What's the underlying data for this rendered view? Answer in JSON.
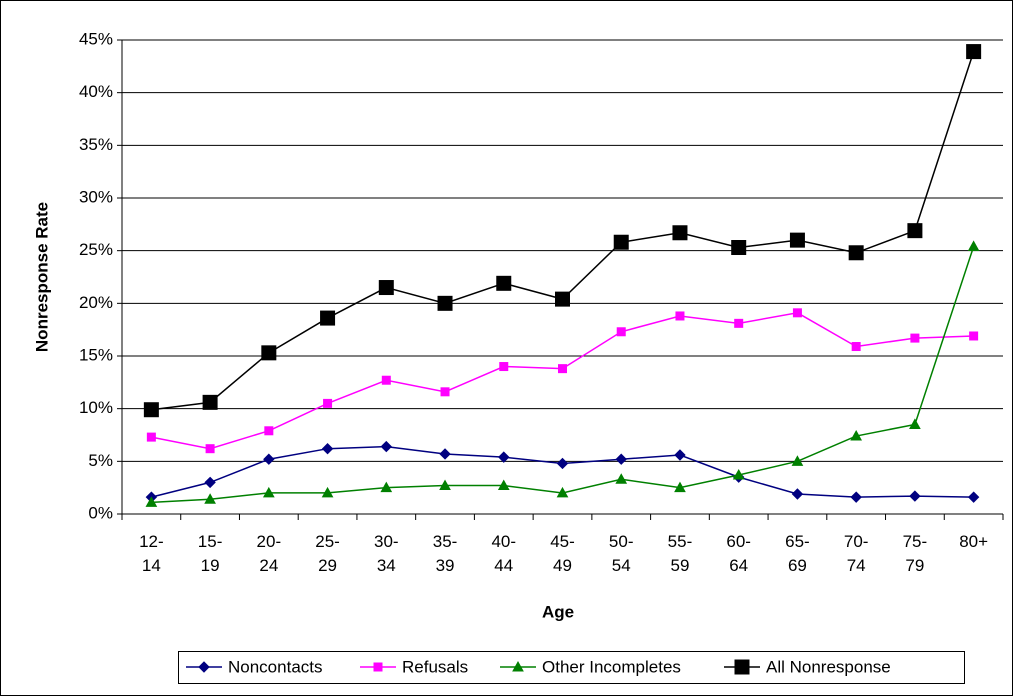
{
  "chart_data": {
    "type": "line",
    "x_label": "Age",
    "y_label": "Nonresponse Rate",
    "categories": [
      "12-14",
      "15-19",
      "20-24",
      "25-29",
      "30-34",
      "35-39",
      "40-44",
      "45-49",
      "50-54",
      "55-59",
      "60-64",
      "65-69",
      "70-74",
      "75-79",
      "80+"
    ],
    "series": [
      {
        "name": "Noncontacts",
        "color": "#000080",
        "marker": "diamond",
        "values": [
          1.6,
          3.0,
          5.2,
          6.2,
          6.4,
          5.7,
          5.4,
          4.8,
          5.2,
          5.6,
          3.5,
          1.9,
          1.6,
          1.7,
          1.6
        ]
      },
      {
        "name": "Refusals",
        "color": "#ff00ff",
        "marker": "square",
        "values": [
          7.3,
          6.2,
          7.9,
          10.5,
          12.7,
          11.6,
          14.0,
          13.8,
          17.3,
          18.8,
          18.1,
          19.1,
          15.9,
          16.7,
          16.9
        ]
      },
      {
        "name": "Other Incompletes",
        "color": "#008000",
        "marker": "triangle",
        "values": [
          1.1,
          1.4,
          2.0,
          2.0,
          2.5,
          2.7,
          2.7,
          2.0,
          3.3,
          2.5,
          3.7,
          5.0,
          7.4,
          8.5,
          25.4
        ]
      },
      {
        "name": "All Nonresponse",
        "color": "#000000",
        "marker": "bigsquare",
        "values": [
          9.9,
          10.6,
          15.3,
          18.6,
          21.5,
          20.0,
          21.9,
          20.4,
          25.8,
          26.7,
          25.3,
          26.0,
          24.8,
          26.9,
          43.9
        ]
      }
    ],
    "ylim": [
      0,
      45
    ],
    "yticks": [
      {
        "value": 0,
        "label": "0%"
      },
      {
        "value": 5,
        "label": "5%"
      },
      {
        "value": 10,
        "label": "10%"
      },
      {
        "value": 15,
        "label": "15%"
      },
      {
        "value": 20,
        "label": "20%"
      },
      {
        "value": 25,
        "label": "25%"
      },
      {
        "value": 30,
        "label": "30%"
      },
      {
        "value": 35,
        "label": "35%"
      },
      {
        "value": 40,
        "label": "40%"
      },
      {
        "value": 45,
        "label": "45%"
      }
    ],
    "grid": true,
    "legend": "bottom"
  }
}
